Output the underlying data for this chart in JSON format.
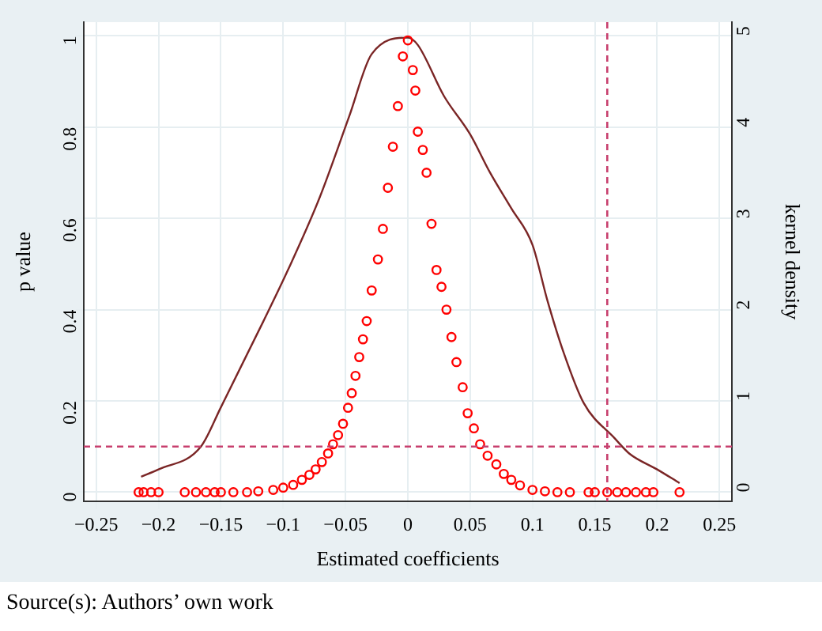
{
  "chart_data": {
    "type": "scatter",
    "xlabel": "Estimated coefficients",
    "ylabel": "p value",
    "y2label": "kernel density",
    "annotations": [
      "Source(s): Authors’ own work"
    ],
    "xlim": [
      -0.26,
      0.26
    ],
    "xticks": [
      {
        "value": -0.25,
        "label": "−0.25"
      },
      {
        "value": -0.2,
        "label": "−0.2"
      },
      {
        "value": -0.15,
        "label": "−0.15"
      },
      {
        "value": -0.1,
        "label": "−0.1"
      },
      {
        "value": -0.05,
        "label": "−0.05"
      },
      0,
      0.05,
      0.1,
      0.15,
      0.2,
      0.25
    ],
    "ylim": [
      -0.02,
      1.03
    ],
    "yticks": [
      0,
      0.2,
      0.4,
      0.6,
      0.8,
      1
    ],
    "y2lim": [
      -0.1,
      5.15
    ],
    "y2ticks": [
      0,
      1,
      2,
      3,
      4,
      5
    ],
    "grid": true,
    "legend": false,
    "series": [
      {
        "color": "#ff0000",
        "marker": "circle",
        "x": [
          -0.216,
          -0.212,
          -0.206,
          -0.2,
          -0.179,
          -0.17,
          -0.162,
          -0.155,
          -0.15,
          -0.14,
          -0.129,
          -0.12,
          -0.108,
          -0.1,
          -0.092,
          -0.085,
          -0.079,
          -0.074,
          -0.069,
          -0.064,
          -0.06,
          -0.056,
          -0.052,
          -0.048,
          -0.045,
          -0.042,
          -0.039,
          -0.036,
          -0.033,
          -0.029,
          -0.024,
          -0.02,
          -0.016,
          -0.012,
          -0.008,
          -0.004,
          0,
          0.004,
          0.006,
          0.008,
          0.012,
          0.015,
          0.019,
          0.023,
          0.027,
          0.031,
          0.035,
          0.039,
          0.044,
          0.048,
          0.053,
          0.058,
          0.064,
          0.071,
          0.077,
          0.083,
          0.09,
          0.1,
          0.11,
          0.12,
          0.13,
          0.145,
          0.15,
          0.16,
          0.168,
          0.175,
          0.183,
          0.191,
          0.197,
          0.218
        ],
        "values": [
          0,
          0,
          0,
          0,
          0,
          0,
          0,
          0,
          0,
          0,
          0,
          0.002,
          0.005,
          0.01,
          0.016,
          0.027,
          0.038,
          0.05,
          0.066,
          0.085,
          0.105,
          0.125,
          0.15,
          0.185,
          0.217,
          0.255,
          0.296,
          0.335,
          0.375,
          0.442,
          0.51,
          0.577,
          0.667,
          0.757,
          0.846,
          0.955,
          0.99,
          0.925,
          0.88,
          0.79,
          0.75,
          0.7,
          0.588,
          0.487,
          0.45,
          0.4,
          0.34,
          0.285,
          0.23,
          0.173,
          0.14,
          0.105,
          0.08,
          0.061,
          0.04,
          0.027,
          0.015,
          0.005,
          0.002,
          0,
          0,
          0,
          0,
          0,
          0,
          0,
          0,
          0,
          0,
          0
        ]
      },
      {
        "type": "line",
        "axis": "y2",
        "color": "#7a2525",
        "marker": "none",
        "x": [
          -0.214,
          -0.2,
          -0.166,
          -0.15,
          -0.116,
          -0.096,
          -0.071,
          -0.047,
          -0.029,
          0,
          0.008,
          0.029,
          0.05,
          0.066,
          0.083,
          0.1,
          0.112,
          0.125,
          0.141,
          0.166,
          0.178,
          0.2,
          0.218
        ],
        "values": [
          0.17,
          0.25,
          0.5,
          0.93,
          1.87,
          2.44,
          3.22,
          4.12,
          4.8,
          4.98,
          4.9,
          4.34,
          3.92,
          3.5,
          3.11,
          2.71,
          2.1,
          1.53,
          0.98,
          0.59,
          0.42,
          0.25,
          0.1
        ]
      }
    ],
    "ref_lines": [
      {
        "axis": "x",
        "value": 0.16,
        "color": "#c8406e",
        "line_style": "dashed"
      },
      {
        "axis": "y",
        "value": 0.1,
        "color": "#c8406e",
        "line_style": "dashed"
      }
    ]
  }
}
